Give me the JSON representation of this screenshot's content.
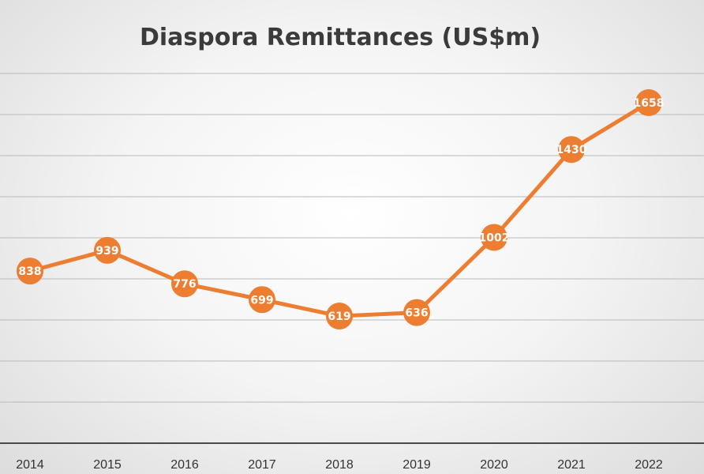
{
  "chart_data": {
    "type": "line",
    "title": "Diaspora Remittances (US$m)",
    "xlabel": "",
    "ylabel": "",
    "categories": [
      "2014",
      "2015",
      "2016",
      "2017",
      "2018",
      "2019",
      "2020",
      "2021",
      "2022"
    ],
    "series": [
      {
        "values": [
          838,
          939,
          776,
          699,
          619,
          636,
          1002,
          1430,
          1658
        ],
        "color": "#ed7d31"
      }
    ],
    "ylim": [
      0,
      1800
    ],
    "grid": true,
    "legend": "none",
    "data_labels": true
  }
}
